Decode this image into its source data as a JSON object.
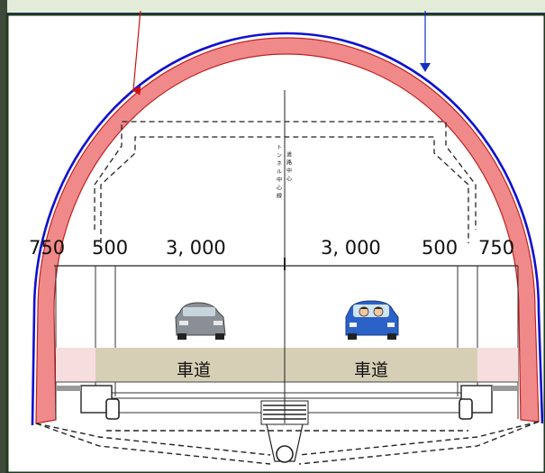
{
  "dimensions": {
    "left_shoulder": "750",
    "left_sidewalk": "500",
    "left_lane": "3, 000",
    "right_lane": "3, 000",
    "right_sidewalk": "500",
    "right_shoulder": "750"
  },
  "lane_labels": {
    "left": "車道",
    "right": "車道"
  },
  "centerline_labels": {
    "road_center": "道路中心",
    "tunnel_center": "トンネル中心線"
  },
  "colors": {
    "lining_fill": "#f08a8a",
    "outer_line": "#1010d0",
    "top_banner": "#e2ecd8",
    "road_band": "#d6cfb5",
    "arrow_red": "#d01010",
    "arrow_blue": "#1030c0"
  },
  "icons": {
    "left_vehicle": "gray-car-icon",
    "right_vehicle": "blue-car-with-people-icon"
  }
}
